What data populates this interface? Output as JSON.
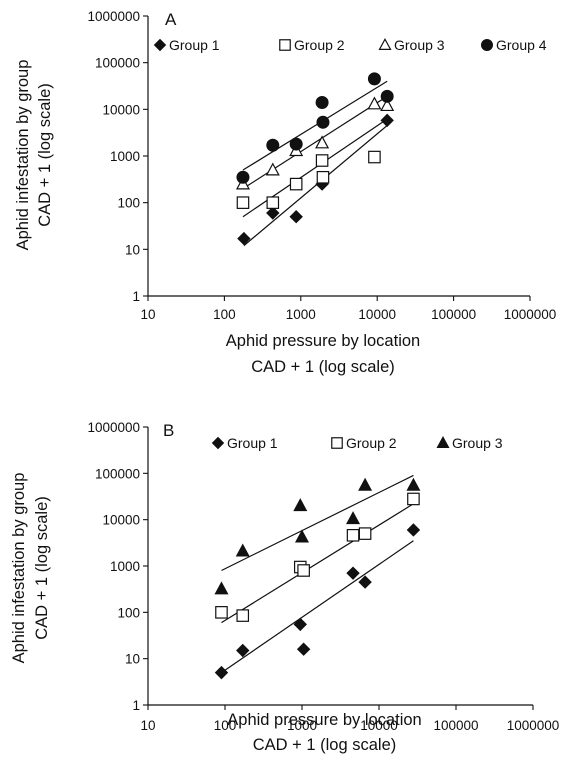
{
  "chart_data": [
    {
      "type": "scatter",
      "panel_label": "A",
      "xlabel": [
        "Aphid pressure by location",
        "CAD + 1 (log scale)"
      ],
      "ylabel": [
        "Aphid infestation by group",
        "CAD + 1 (log scale)"
      ],
      "x_scale": "log",
      "y_scale": "log",
      "xlim": [
        10,
        1000000
      ],
      "ylim": [
        1,
        1000000
      ],
      "x_ticks": [
        "10",
        "100",
        "1000",
        "10000",
        "100000",
        "1000000"
      ],
      "y_ticks": [
        "1",
        "10",
        "100",
        "1000",
        "10000",
        "100000",
        "1000000"
      ],
      "legend_position": "top",
      "series": [
        {
          "name": "Group 1",
          "marker": "diamond-filled",
          "points": [
            [
              180,
              17
            ],
            [
              430,
              60
            ],
            [
              870,
              50
            ],
            [
              1900,
              250
            ],
            [
              13500,
              5800
            ]
          ],
          "trend": [
            [
              180,
              12
            ],
            [
              13500,
              4500
            ]
          ]
        },
        {
          "name": "Group 2",
          "marker": "square-open",
          "points": [
            [
              175,
              100
            ],
            [
              430,
              100
            ],
            [
              870,
              250
            ],
            [
              1900,
              800
            ],
            [
              1950,
              350
            ],
            [
              9200,
              950
            ]
          ],
          "trend": [
            [
              175,
              50
            ],
            [
              13500,
              6200
            ]
          ]
        },
        {
          "name": "Group 3",
          "marker": "triangle-open",
          "points": [
            [
              175,
              250
            ],
            [
              430,
              500
            ],
            [
              870,
              1300
            ],
            [
              1900,
              1900
            ],
            [
              9200,
              13000
            ],
            [
              13500,
              12000
            ]
          ],
          "trend": [
            [
              175,
              200
            ],
            [
              13500,
              19000
            ]
          ]
        },
        {
          "name": "Group 4",
          "marker": "circle-filled",
          "points": [
            [
              175,
              350
            ],
            [
              430,
              1700
            ],
            [
              870,
              1800
            ],
            [
              1900,
              14000
            ],
            [
              1950,
              5300
            ],
            [
              9200,
              45000
            ],
            [
              13500,
              19000
            ]
          ],
          "trend": [
            [
              175,
              500
            ],
            [
              13500,
              40000
            ]
          ]
        }
      ]
    },
    {
      "type": "scatter",
      "panel_label": "B",
      "xlabel": [
        "Aphid pressure by location",
        "CAD + 1 (log scale)"
      ],
      "ylabel": [
        "Aphid infestation by group",
        "CAD + 1 (log scale)"
      ],
      "x_scale": "log",
      "y_scale": "log",
      "xlim": [
        10,
        1000000
      ],
      "ylim": [
        1,
        1000000
      ],
      "x_ticks": [
        "10",
        "100",
        "1000",
        "10000",
        "100000",
        "1000000"
      ],
      "y_ticks": [
        "1",
        "10",
        "100",
        "1000",
        "10000",
        "100000",
        "1000000"
      ],
      "legend_position": "top",
      "series": [
        {
          "name": "Group 1",
          "marker": "diamond-filled",
          "points": [
            [
              90,
              5
            ],
            [
              170,
              15
            ],
            [
              950,
              55
            ],
            [
              1050,
              16
            ],
            [
              4600,
              700
            ],
            [
              6600,
              450
            ],
            [
              28000,
              6000
            ]
          ],
          "trend": [
            [
              90,
              5
            ],
            [
              28000,
              3500
            ]
          ]
        },
        {
          "name": "Group 2",
          "marker": "square-open",
          "points": [
            [
              90,
              100
            ],
            [
              170,
              85
            ],
            [
              950,
              950
            ],
            [
              1050,
              800
            ],
            [
              4600,
              4600
            ],
            [
              6600,
              5000
            ],
            [
              28000,
              28000
            ]
          ],
          "trend": [
            [
              90,
              60
            ],
            [
              28000,
              22000
            ]
          ]
        },
        {
          "name": "Group 3",
          "marker": "triangle-filled",
          "points": [
            [
              90,
              320
            ],
            [
              170,
              2100
            ],
            [
              950,
              20000
            ],
            [
              1000,
              4200
            ],
            [
              4600,
              10500
            ],
            [
              6600,
              55000
            ],
            [
              28000,
              55000
            ]
          ],
          "trend": [
            [
              90,
              800
            ],
            [
              28000,
              90000
            ]
          ]
        }
      ]
    }
  ]
}
